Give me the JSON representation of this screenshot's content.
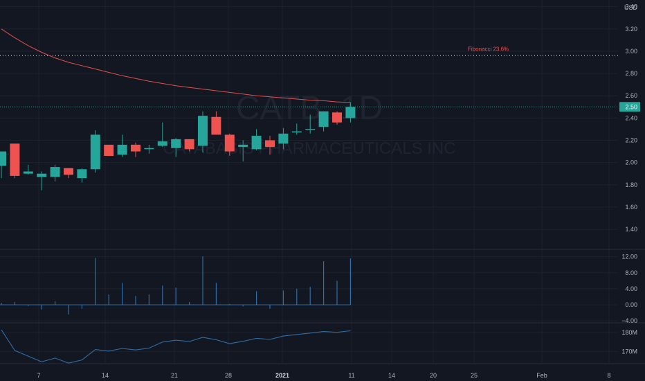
{
  "watermark": {
    "symbol": "CATB, 1D",
    "name": "CATABASIS PHARMACEUTICALS INC"
  },
  "colors": {
    "background": "#131722",
    "grid": "#1e222d",
    "up": "#26a69a",
    "down": "#ef5350",
    "ma_line": "#e0504a",
    "indicator_line": "#2f6ea8",
    "axis_text": "#b2b5be",
    "fib": "#ef5350"
  },
  "chart_data": [
    {
      "type": "candlestick",
      "currency": "USD",
      "ylim": [
        1.22,
        3.46
      ],
      "yticks": [
        3.4,
        3.2,
        3.0,
        2.8,
        2.6,
        2.4,
        2.2,
        2.0,
        1.8,
        1.6,
        1.4
      ],
      "ytick_labels": [
        "3.40",
        "3.20",
        "3.00",
        "2.80",
        "2.60",
        "2.40",
        "2.20",
        "2.00",
        "1.80",
        "1.60",
        "1.40"
      ],
      "last_price_label": "2.50",
      "last_price": 2.5,
      "fibonacci": {
        "label": "Fibonacci 23.6%",
        "value": 2.96
      },
      "candles": [
        {
          "o": 1.97,
          "h": 2.1,
          "l": 1.86,
          "c": 2.1
        },
        {
          "o": 2.17,
          "h": 2.17,
          "l": 1.86,
          "c": 1.88
        },
        {
          "o": 1.9,
          "h": 1.98,
          "l": 1.89,
          "c": 1.92
        },
        {
          "o": 1.87,
          "h": 1.92,
          "l": 1.75,
          "c": 1.9
        },
        {
          "o": 1.87,
          "h": 1.98,
          "l": 1.83,
          "c": 1.96
        },
        {
          "o": 1.95,
          "h": 1.95,
          "l": 1.86,
          "c": 1.89
        },
        {
          "o": 1.86,
          "h": 1.95,
          "l": 1.82,
          "c": 1.94
        },
        {
          "o": 1.94,
          "h": 2.29,
          "l": 1.91,
          "c": 2.25
        },
        {
          "o": 2.16,
          "h": 2.16,
          "l": 2.06,
          "c": 2.06
        },
        {
          "o": 2.07,
          "h": 2.25,
          "l": 2.05,
          "c": 2.16
        },
        {
          "o": 2.16,
          "h": 2.18,
          "l": 2.05,
          "c": 2.1
        },
        {
          "o": 2.12,
          "h": 2.16,
          "l": 2.08,
          "c": 2.13
        },
        {
          "o": 2.15,
          "h": 2.36,
          "l": 2.14,
          "c": 2.19
        },
        {
          "o": 2.13,
          "h": 2.22,
          "l": 2.05,
          "c": 2.21
        },
        {
          "o": 2.21,
          "h": 2.21,
          "l": 2.1,
          "c": 2.12
        },
        {
          "o": 2.15,
          "h": 2.46,
          "l": 2.09,
          "c": 2.42
        },
        {
          "o": 2.41,
          "h": 2.46,
          "l": 2.25,
          "c": 2.25
        },
        {
          "o": 2.25,
          "h": 2.26,
          "l": 2.06,
          "c": 2.1
        },
        {
          "o": 2.14,
          "h": 2.2,
          "l": 2.01,
          "c": 2.16
        },
        {
          "o": 2.12,
          "h": 2.3,
          "l": 2.11,
          "c": 2.24
        },
        {
          "o": 2.2,
          "h": 2.24,
          "l": 2.07,
          "c": 2.14
        },
        {
          "o": 2.17,
          "h": 2.31,
          "l": 2.12,
          "c": 2.26
        },
        {
          "o": 2.27,
          "h": 2.35,
          "l": 2.25,
          "c": 2.28
        },
        {
          "o": 2.3,
          "h": 2.43,
          "l": 2.26,
          "c": 2.3
        },
        {
          "o": 2.32,
          "h": 2.46,
          "l": 2.28,
          "c": 2.46
        },
        {
          "o": 2.45,
          "h": 2.46,
          "l": 2.34,
          "c": 2.36
        },
        {
          "o": 2.4,
          "h": 2.54,
          "l": 2.36,
          "c": 2.5
        }
      ],
      "moving_average": [
        3.2,
        3.12,
        3.05,
        2.99,
        2.94,
        2.9,
        2.87,
        2.84,
        2.81,
        2.78,
        2.755,
        2.73,
        2.71,
        2.69,
        2.675,
        2.66,
        2.645,
        2.63,
        2.615,
        2.6,
        2.59,
        2.58,
        2.57,
        2.56,
        2.555,
        2.545,
        2.54
      ]
    },
    {
      "type": "bar",
      "ylim": [
        -4.5,
        13.5
      ],
      "yticks": [
        12.0,
        8.0,
        4.0,
        0.0,
        -4.0
      ],
      "ytick_labels": [
        "12.00",
        "8.00",
        "4.00",
        "0.00",
        "−4.00"
      ],
      "values": [
        0.5,
        0.7,
        -0.3,
        -1.2,
        0.9,
        -2.4,
        -1.0,
        11.7,
        2.6,
        5.5,
        2.2,
        2.6,
        4.8,
        4.3,
        0.7,
        12.1,
        5.5,
        0.2,
        -0.4,
        3.4,
        -1.0,
        3.6,
        4.0,
        4.5,
        10.9,
        6.0,
        11.6
      ]
    },
    {
      "type": "line",
      "ylim": [
        163.5,
        184.5
      ],
      "yticks": [
        180,
        170
      ],
      "ytick_labels": [
        "180M",
        "170M"
      ],
      "values": [
        181.5,
        170.5,
        167.5,
        164.5,
        166.5,
        163.8,
        165.5,
        171.0,
        170.2,
        171.6,
        170.8,
        171.8,
        175.0,
        176.0,
        175.3,
        177.5,
        176.2,
        174.2,
        175.4,
        177.0,
        176.4,
        178.2,
        179.0,
        179.8,
        180.6,
        180.2,
        181.0
      ]
    }
  ],
  "x_axis": {
    "labels": [
      "7",
      "14",
      "21",
      "28",
      "2021",
      "11",
      "14",
      "20",
      "25",
      "Feb",
      "8"
    ],
    "bold_label": "2021"
  }
}
